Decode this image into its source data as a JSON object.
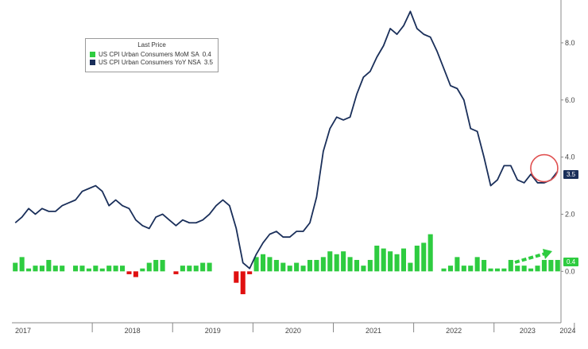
{
  "legend": {
    "title": "Last Price",
    "series": [
      {
        "label": "US CPI Urban Consumers MoM SA",
        "value": "0.4",
        "color": "#2ecc40"
      },
      {
        "label": "US CPI Urban Consumers YoY NSA",
        "value": "3.5",
        "color": "#1a2f5a"
      }
    ]
  },
  "last_value_tags": {
    "yoy": "3.5",
    "mom": "0.4"
  },
  "chart_data": {
    "type": "bar+line",
    "y_axis_side": "right",
    "ylim": [
      -1.8,
      9.5
    ],
    "y_ticks": [
      {
        "value": 0,
        "label": "0.0"
      },
      {
        "value": 2,
        "label": "2.0"
      },
      {
        "value": 4,
        "label": "4.0"
      },
      {
        "value": 6,
        "label": "6.0"
      },
      {
        "value": 8,
        "label": "8.0"
      }
    ],
    "x_start": "2017-01",
    "x_end": "2024-03",
    "x_ticks": [
      "2017",
      "2018",
      "2019",
      "2020",
      "2021",
      "2022",
      "2023",
      "2024"
    ],
    "grid": false,
    "legend_position": "top-left",
    "series": [
      {
        "name": "US CPI Urban Consumers YoY NSA",
        "kind": "line",
        "color": "#1a2f5a",
        "values": [
          1.7,
          1.9,
          2.2,
          2.0,
          2.2,
          2.1,
          2.1,
          2.3,
          2.4,
          2.5,
          2.8,
          2.9,
          3.0,
          2.8,
          2.3,
          2.5,
          2.3,
          2.2,
          1.8,
          1.6,
          1.5,
          1.9,
          2.0,
          1.8,
          1.6,
          1.8,
          1.7,
          1.7,
          1.8,
          2.0,
          2.3,
          2.5,
          2.3,
          1.5,
          0.3,
          0.1,
          0.6,
          1.0,
          1.3,
          1.4,
          1.2,
          1.2,
          1.4,
          1.4,
          1.7,
          2.6,
          4.2,
          5.0,
          5.4,
          5.3,
          5.4,
          6.2,
          6.8,
          7.0,
          7.5,
          7.9,
          8.5,
          8.3,
          8.6,
          9.1,
          8.5,
          8.3,
          8.2,
          7.7,
          7.1,
          6.5,
          6.4,
          6.0,
          5.0,
          4.9,
          4.0,
          3.0,
          3.2,
          3.7,
          3.7,
          3.2,
          3.1,
          3.4,
          3.1,
          3.1,
          3.2,
          3.5
        ]
      },
      {
        "name": "US CPI Urban Consumers MoM SA",
        "kind": "bar",
        "positive_color": "#2ecc40",
        "negative_color": "#e01010",
        "values": [
          0.3,
          0.5,
          0.1,
          0.2,
          0.2,
          0.4,
          0.2,
          0.2,
          0.0,
          0.2,
          0.2,
          0.1,
          0.2,
          0.1,
          0.2,
          0.2,
          0.2,
          -0.1,
          -0.2,
          0.1,
          0.3,
          0.4,
          0.4,
          0.0,
          -0.1,
          0.2,
          0.2,
          0.2,
          0.3,
          0.3,
          0.0,
          0.0,
          0.0,
          -0.4,
          -0.8,
          -0.1,
          0.5,
          0.6,
          0.5,
          0.4,
          0.3,
          0.2,
          0.3,
          0.2,
          0.4,
          0.4,
          0.5,
          0.7,
          0.6,
          0.7,
          0.5,
          0.4,
          0.2,
          0.4,
          0.9,
          0.8,
          0.7,
          0.6,
          0.8,
          0.3,
          0.9,
          1.0,
          1.3,
          0.0,
          0.1,
          0.2,
          0.5,
          0.2,
          0.2,
          0.5,
          0.4,
          0.1,
          0.1,
          0.1,
          0.4,
          0.2,
          0.2,
          0.1,
          0.2,
          0.4,
          0.4,
          0.4
        ]
      }
    ]
  }
}
